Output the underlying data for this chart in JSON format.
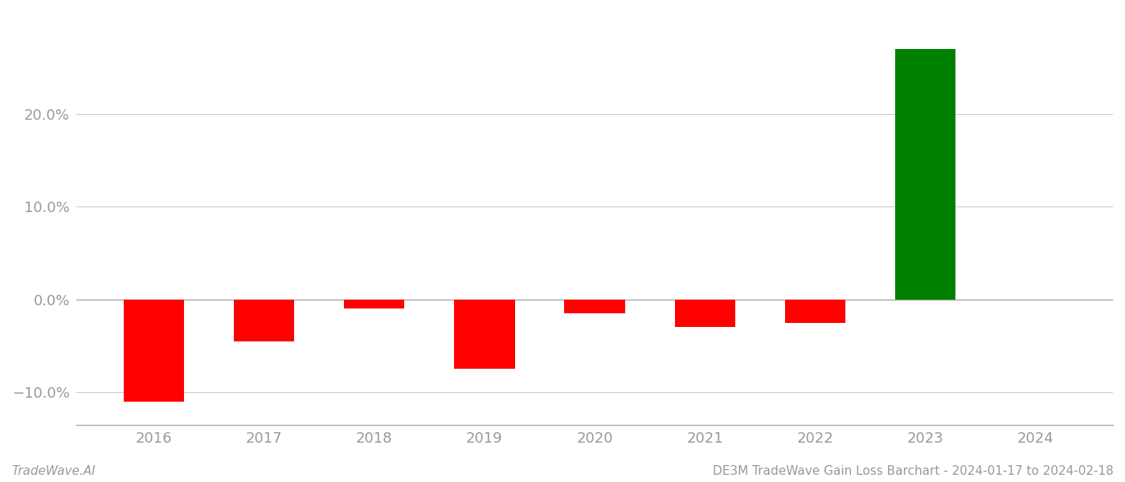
{
  "years": [
    2016,
    2017,
    2018,
    2019,
    2020,
    2021,
    2022,
    2023,
    2024
  ],
  "values": [
    -0.11,
    -0.045,
    -0.01,
    -0.075,
    -0.015,
    -0.03,
    -0.025,
    0.27,
    0.0
  ],
  "colors": [
    "#ff0000",
    "#ff0000",
    "#ff0000",
    "#ff0000",
    "#ff0000",
    "#ff0000",
    "#ff0000",
    "#008000",
    "#ffffff"
  ],
  "bar_width": 0.55,
  "ylim": [
    -0.135,
    0.31
  ],
  "yticks": [
    -0.1,
    0.0,
    0.1,
    0.2
  ],
  "xlim": [
    2015.3,
    2024.7
  ],
  "footer_left": "TradeWave.AI",
  "footer_right": "DE3M TradeWave Gain Loss Barchart - 2024-01-17 to 2024-02-18",
  "background_color": "#ffffff",
  "grid_color": "#cccccc",
  "tick_color": "#999999",
  "spine_color": "#aaaaaa",
  "tick_fontsize": 13,
  "footer_fontsize": 11
}
